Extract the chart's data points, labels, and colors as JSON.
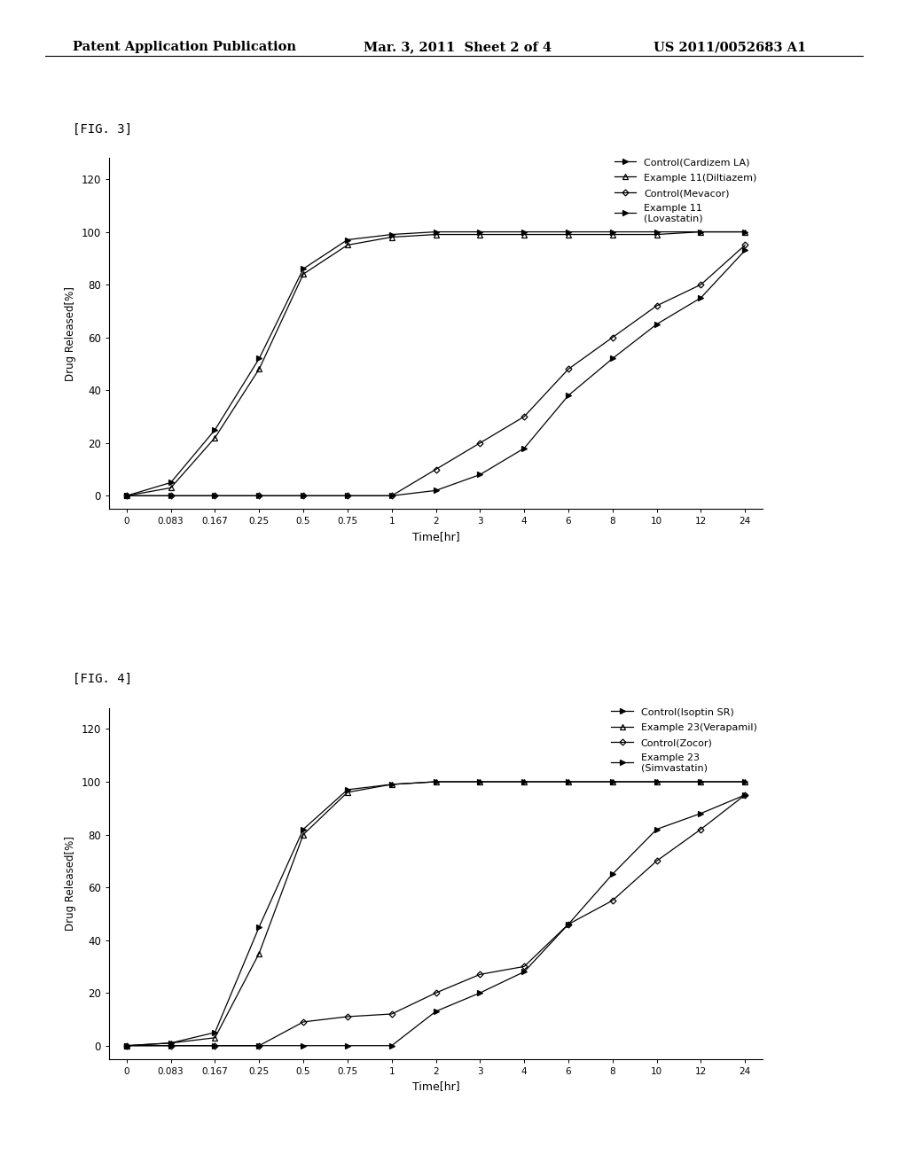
{
  "header_left": "Patent Application Publication",
  "header_mid": "Mar. 3, 2011  Sheet 2 of 4",
  "header_right": "US 2011/0052683 A1",
  "fig3_label": "[FIG. 3]",
  "fig4_label": "[FIG. 4]",
  "xlabel": "Time[hr]",
  "ylabel": "Drug Released[%]",
  "yticks": [
    0,
    20,
    40,
    60,
    80,
    100,
    120
  ],
  "xtick_labels": [
    "0",
    "0.083",
    "0.167",
    "0.25",
    "0.5",
    "0.75",
    "1",
    "2",
    "3",
    "4",
    "6",
    "8",
    "10",
    "12",
    "24"
  ],
  "xtick_positions": [
    0,
    0.083,
    0.167,
    0.25,
    0.5,
    0.75,
    1,
    2,
    3,
    4,
    6,
    8,
    10,
    12,
    24
  ],
  "fig3": {
    "series1_label": "Control(Cardizem LA)",
    "series1_x": [
      0,
      0.083,
      0.167,
      0.25,
      0.5,
      0.75,
      1,
      2,
      3,
      4,
      6,
      8,
      10,
      12,
      24
    ],
    "series1_y": [
      0,
      5,
      25,
      52,
      86,
      97,
      99,
      100,
      100,
      100,
      100,
      100,
      100,
      100,
      100
    ],
    "series2_label": "Example 11(Diltiazem)",
    "series2_x": [
      0,
      0.083,
      0.167,
      0.25,
      0.5,
      0.75,
      1,
      2,
      3,
      4,
      6,
      8,
      10,
      12,
      24
    ],
    "series2_y": [
      0,
      3,
      22,
      48,
      84,
      95,
      98,
      99,
      99,
      99,
      99,
      99,
      99,
      100,
      100
    ],
    "series3_label": "Control(Mevacor)",
    "series3_x": [
      0,
      0.083,
      0.167,
      0.25,
      0.5,
      0.75,
      1,
      2,
      3,
      4,
      6,
      8,
      10,
      12,
      24
    ],
    "series3_y": [
      0,
      0,
      0,
      0,
      0,
      0,
      0,
      10,
      20,
      30,
      48,
      60,
      72,
      80,
      95
    ],
    "series4_label": "Example 11\n(Lovastatin)",
    "series4_x": [
      0,
      0.083,
      0.167,
      0.25,
      0.5,
      0.75,
      1,
      2,
      3,
      4,
      6,
      8,
      10,
      12,
      24
    ],
    "series4_y": [
      0,
      0,
      0,
      0,
      0,
      0,
      0,
      2,
      8,
      18,
      38,
      52,
      65,
      75,
      93
    ]
  },
  "fig4": {
    "series1_label": "Control(Isoptin SR)",
    "series1_x": [
      0,
      0.083,
      0.167,
      0.25,
      0.5,
      0.75,
      1,
      2,
      3,
      4,
      6,
      8,
      10,
      12,
      24
    ],
    "series1_y": [
      0,
      1,
      5,
      45,
      82,
      97,
      99,
      100,
      100,
      100,
      100,
      100,
      100,
      100,
      100
    ],
    "series2_label": "Example 23(Verapamil)",
    "series2_x": [
      0,
      0.083,
      0.167,
      0.25,
      0.5,
      0.75,
      1,
      2,
      3,
      4,
      6,
      8,
      10,
      12,
      24
    ],
    "series2_y": [
      0,
      1,
      3,
      35,
      80,
      96,
      99,
      100,
      100,
      100,
      100,
      100,
      100,
      100,
      100
    ],
    "series3_label": "Control(Zocor)",
    "series3_x": [
      0,
      0.083,
      0.167,
      0.25,
      0.5,
      0.75,
      1,
      2,
      3,
      4,
      6,
      8,
      10,
      12,
      24
    ],
    "series3_y": [
      0,
      0,
      0,
      0,
      9,
      11,
      12,
      20,
      27,
      30,
      46,
      55,
      70,
      82,
      95
    ],
    "series4_label": "Example 23\n(Simvastatin)",
    "series4_x": [
      0,
      0.083,
      0.167,
      0.25,
      0.5,
      0.75,
      1,
      2,
      3,
      4,
      6,
      8,
      10,
      12,
      24
    ],
    "series4_y": [
      0,
      0,
      0,
      0,
      0,
      0,
      0,
      13,
      20,
      28,
      46,
      65,
      82,
      88,
      95
    ]
  },
  "line_color": "#000000",
  "bg_color": "#ffffff"
}
